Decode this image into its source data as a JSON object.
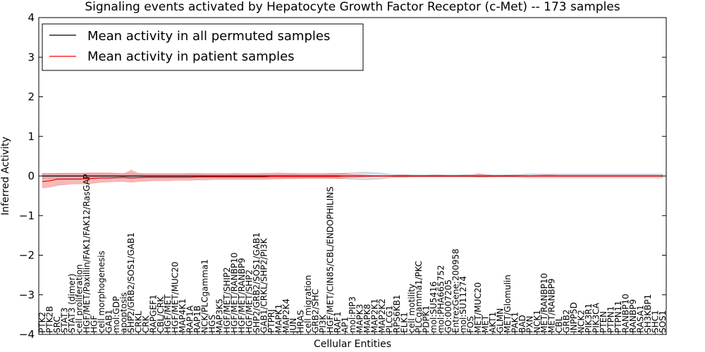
{
  "chart_data": {
    "type": "line",
    "title": "Signaling events activated by Hepatocyte Growth Factor Receptor (c-Met) -- 173 samples",
    "xlabel": "Cellular Entities",
    "ylabel": "Inferred Activity",
    "ylim": [
      -4,
      4
    ],
    "yticks": [
      -4,
      -3,
      -2,
      -1,
      0,
      1,
      2,
      3,
      4
    ],
    "ytick_labels": [
      "−4",
      "−3",
      "−2",
      "−1",
      "0",
      "1",
      "2",
      "3",
      "4"
    ],
    "legend": {
      "placement": "top-left",
      "entries": [
        {
          "label": "Mean activity in all permuted samples",
          "color": "#000000"
        },
        {
          "label": "Mean activity in patient samples",
          "color": "#ff0000"
        }
      ]
    },
    "colors": {
      "patient_line": "#ff0000",
      "patient_band": "#f08080",
      "permuted_line": "#000000",
      "permuted_band": "#c8c8dc"
    },
    "categories": [
      "PTK2",
      "PTK2B",
      "SRC",
      "STAT3",
      "STAT3 (dimer)",
      "cell proliferation",
      "HGF/MET/Paxillin/FAK1/FAK12/RasGAP",
      "HGF",
      "cell morphogenesis",
      "GAB1",
      "mol:GDP",
      "apoptosis",
      "SHP2/GRB2/SOS1/GAB1",
      "CRKL",
      "CRK",
      "RAPGEF1",
      "CBL/CRK",
      "HGF/MET",
      "HGF/MET/MUC20",
      "MAP4K1",
      "RAP1A",
      "RAP1B",
      "NCK/PLCgamma1",
      "HGS",
      "MAP3K5",
      "HGF/MET/SHIP2",
      "HGF/MET/RANBP10",
      "HGF/MET/RANBP9",
      "HGF/MET/SHP2",
      "SHP2/GRB2/SOS1/GAB1",
      "GAB1/CRKL/SHP2/PI3K",
      "PTPRJ",
      "MAPK1",
      "MAP2K4",
      "JUN",
      "HRAS",
      "cell migration",
      "GRB2/SHC",
      "PI3K",
      "HGF/MET/CIN85/CBL/ENDOPHILINS",
      "RAF1",
      "AP1",
      "mol:PIP3",
      "MAPK3",
      "MAPK8",
      "MAP2K1",
      "MAP2K2",
      "PLCG1",
      "RPS6KB1",
      "ELK1",
      "cell motility",
      "PLCgamma1/PKC",
      "PDPK1",
      "mol:SU5416",
      "mol:PHA665752",
      "GO:0007205",
      "EntrezGene:200958",
      "mol:SU11274",
      "FOS",
      "MET/MUC20",
      "MET",
      "AKT1",
      "GLMN",
      "MET/Glomulin",
      "PAK1",
      "BAD",
      "PXN",
      "NCK1",
      "MET/RANBP10",
      "MET/RANBP9",
      "CBL",
      "GRB2",
      "INPP5D",
      "NCK2",
      "PIK3R1",
      "PIK3CA",
      "PTEN",
      "PTPN1",
      "PTPN11",
      "RANBP10",
      "RANBP9",
      "RASA1",
      "SH3KBP1",
      "SHC1",
      "SOS1"
    ],
    "series": [
      {
        "name": "Mean activity in all permuted samples",
        "values": [
          0.0,
          0.0,
          0.0,
          0.0,
          0.0,
          0.0,
          0.0,
          0.0,
          0.0,
          0.0,
          0.0,
          0.0,
          0.0,
          0.0,
          0.0,
          0.0,
          0.0,
          0.0,
          0.0,
          0.0,
          0.0,
          0.0,
          0.0,
          0.0,
          0.0,
          0.0,
          0.0,
          0.0,
          0.0,
          0.0,
          0.0,
          0.0,
          0.0,
          0.0,
          0.0,
          0.0,
          0.0,
          0.0,
          0.0,
          0.0,
          0.0,
          0.0,
          0.0,
          0.0,
          0.0,
          0.0,
          0.0,
          0.0,
          0.0,
          0.0,
          0.0,
          0.0,
          0.0,
          0.0,
          0.0,
          0.0,
          0.0,
          0.0,
          0.0,
          0.0,
          0.0,
          0.0,
          0.0,
          0.0,
          0.0,
          0.0,
          0.0,
          0.0,
          0.0,
          0.0,
          0.0,
          0.0,
          0.0,
          0.0,
          0.0,
          0.0,
          0.0,
          0.0,
          0.0,
          0.0,
          0.0,
          0.0,
          0.0,
          0.0,
          0.0
        ],
        "lower": [
          -0.06,
          -0.06,
          -0.06,
          -0.06,
          -0.06,
          -0.06,
          -0.06,
          -0.06,
          -0.06,
          -0.06,
          -0.06,
          -0.06,
          -0.06,
          -0.05,
          -0.05,
          -0.05,
          -0.05,
          -0.05,
          -0.05,
          -0.05,
          -0.05,
          -0.05,
          -0.05,
          -0.05,
          -0.05,
          -0.05,
          -0.05,
          -0.05,
          -0.05,
          -0.05,
          -0.05,
          -0.05,
          -0.05,
          -0.05,
          -0.05,
          -0.05,
          -0.05,
          -0.05,
          -0.05,
          -0.05,
          -0.06,
          -0.07,
          -0.08,
          -0.09,
          -0.09,
          -0.08,
          -0.07,
          -0.04,
          -0.03,
          -0.03,
          -0.03,
          -0.03,
          -0.03,
          -0.03,
          -0.03,
          -0.03,
          -0.03,
          -0.03,
          -0.03,
          -0.03,
          -0.03,
          -0.03,
          -0.03,
          -0.03,
          -0.03,
          -0.04,
          -0.05,
          -0.05,
          -0.05,
          -0.05,
          -0.05,
          -0.05,
          -0.05,
          -0.05,
          -0.05,
          -0.05,
          -0.05,
          -0.05,
          -0.05,
          -0.05,
          -0.05,
          -0.05,
          -0.05,
          -0.05,
          -0.05
        ],
        "upper": [
          0.06,
          0.06,
          0.06,
          0.06,
          0.06,
          0.06,
          0.06,
          0.06,
          0.06,
          0.06,
          0.06,
          0.06,
          0.06,
          0.05,
          0.05,
          0.05,
          0.05,
          0.05,
          0.05,
          0.05,
          0.05,
          0.05,
          0.05,
          0.05,
          0.05,
          0.05,
          0.05,
          0.05,
          0.05,
          0.05,
          0.05,
          0.05,
          0.05,
          0.05,
          0.05,
          0.05,
          0.05,
          0.05,
          0.05,
          0.05,
          0.06,
          0.07,
          0.08,
          0.09,
          0.09,
          0.08,
          0.07,
          0.04,
          0.03,
          0.03,
          0.03,
          0.03,
          0.03,
          0.03,
          0.03,
          0.03,
          0.03,
          0.03,
          0.03,
          0.03,
          0.03,
          0.03,
          0.03,
          0.03,
          0.03,
          0.04,
          0.05,
          0.05,
          0.05,
          0.05,
          0.05,
          0.05,
          0.05,
          0.05,
          0.05,
          0.05,
          0.05,
          0.05,
          0.05,
          0.05,
          0.05,
          0.05,
          0.05,
          0.05,
          0.05
        ]
      },
      {
        "name": "Mean activity in patient samples",
        "values": [
          -0.14,
          -0.12,
          -0.08,
          -0.08,
          -0.08,
          -0.08,
          -0.07,
          -0.06,
          -0.05,
          -0.05,
          -0.04,
          -0.03,
          -0.05,
          -0.04,
          -0.03,
          -0.03,
          -0.03,
          -0.03,
          -0.03,
          -0.03,
          -0.03,
          -0.02,
          -0.02,
          -0.02,
          -0.02,
          -0.02,
          -0.02,
          -0.02,
          -0.02,
          -0.02,
          -0.02,
          -0.01,
          -0.01,
          -0.01,
          -0.01,
          -0.01,
          -0.01,
          -0.01,
          -0.01,
          -0.01,
          -0.01,
          0.0,
          0.0,
          0.0,
          0.0,
          0.0,
          0.0,
          0.0,
          0.0,
          0.0,
          0.0,
          0.0,
          0.0,
          0.0,
          0.0,
          0.0,
          0.0,
          0.0,
          0.0,
          0.0,
          0.0,
          0.0,
          0.0,
          0.0,
          0.0,
          0.0,
          0.0,
          0.0,
          0.0,
          0.0,
          0.0,
          0.0,
          0.0,
          0.0,
          0.0,
          0.0,
          0.0,
          0.0,
          0.0,
          0.0,
          0.0,
          0.0,
          0.0,
          0.0,
          0.0
        ],
        "lower": [
          -0.3,
          -0.28,
          -0.24,
          -0.22,
          -0.2,
          -0.2,
          -0.2,
          -0.18,
          -0.16,
          -0.15,
          -0.14,
          -0.14,
          -0.16,
          -0.14,
          -0.13,
          -0.12,
          -0.12,
          -0.12,
          -0.11,
          -0.11,
          -0.11,
          -0.1,
          -0.1,
          -0.09,
          -0.09,
          -0.09,
          -0.09,
          -0.09,
          -0.09,
          -0.09,
          -0.09,
          -0.08,
          -0.08,
          -0.07,
          -0.07,
          -0.06,
          -0.06,
          -0.06,
          -0.06,
          -0.06,
          -0.06,
          -0.05,
          -0.04,
          -0.03,
          -0.02,
          -0.01,
          -0.01,
          -0.01,
          -0.02,
          -0.02,
          -0.01,
          -0.01,
          -0.01,
          -0.01,
          -0.01,
          -0.01,
          -0.01,
          -0.01,
          -0.01,
          -0.02,
          -0.02,
          -0.01,
          -0.01,
          -0.01,
          -0.01,
          -0.01,
          -0.01,
          -0.01,
          -0.01,
          -0.01,
          -0.01,
          -0.01,
          -0.01,
          -0.01,
          -0.01,
          -0.01,
          -0.01,
          -0.01,
          -0.01,
          -0.01,
          -0.01,
          -0.01,
          -0.01,
          -0.01,
          -0.01
        ],
        "upper": [
          0.06,
          0.06,
          0.07,
          0.07,
          0.07,
          0.07,
          0.08,
          0.08,
          0.08,
          0.08,
          0.07,
          0.05,
          0.15,
          0.07,
          0.06,
          0.06,
          0.06,
          0.06,
          0.06,
          0.06,
          0.07,
          0.07,
          0.06,
          0.06,
          0.06,
          0.06,
          0.07,
          0.06,
          0.06,
          0.06,
          0.07,
          0.07,
          0.08,
          0.07,
          0.07,
          0.06,
          0.06,
          0.06,
          0.06,
          0.07,
          0.07,
          0.06,
          0.04,
          0.03,
          0.02,
          0.01,
          0.01,
          0.01,
          0.02,
          0.03,
          0.01,
          0.01,
          0.01,
          0.02,
          0.02,
          0.01,
          0.01,
          0.02,
          0.02,
          0.06,
          0.04,
          0.01,
          0.01,
          0.02,
          0.02,
          0.02,
          0.01,
          0.02,
          0.03,
          0.03,
          0.02,
          0.02,
          0.02,
          0.02,
          0.02,
          0.02,
          0.02,
          0.02,
          0.02,
          0.02,
          0.02,
          0.02,
          0.02,
          0.02,
          0.02
        ]
      }
    ]
  }
}
